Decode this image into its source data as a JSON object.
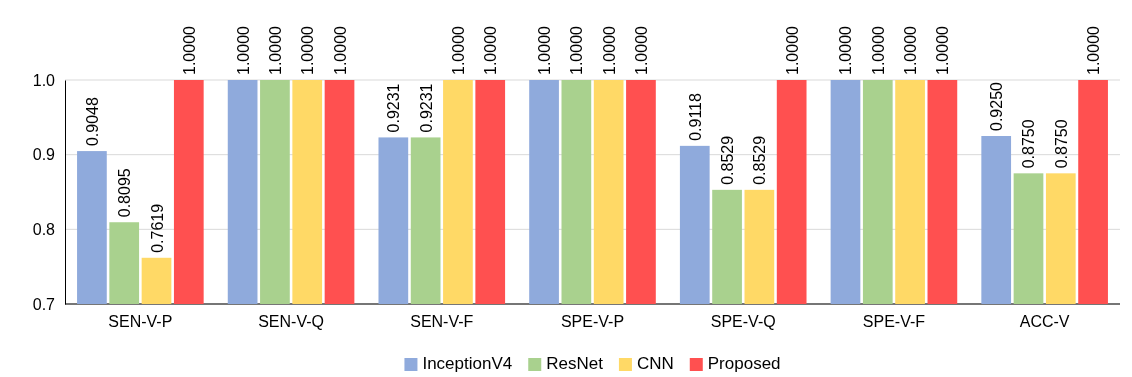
{
  "chart_data": {
    "type": "bar",
    "categories": [
      "SEN-V-P",
      "SEN-V-Q",
      "SEN-V-F",
      "SPE-V-P",
      "SPE-V-Q",
      "SPE-V-F",
      "ACC-V"
    ],
    "series": [
      {
        "name": "InceptionV4",
        "color": "#8faadc",
        "values": [
          0.9048,
          1,
          0.9231,
          1,
          0.9118,
          1,
          0.925
        ],
        "value_labels": [
          "0.9048",
          "1.0000",
          "0.9231",
          "1.0000",
          "0.9118",
          "1.0000",
          "0.9250"
        ]
      },
      {
        "name": "ResNet",
        "color": "#a9d18e",
        "values": [
          0.8095,
          1,
          0.9231,
          1,
          0.8529,
          1,
          0.875
        ],
        "value_labels": [
          "0.8095",
          "1.0000",
          "0.9231",
          "1.0000",
          "0.8529",
          "1.0000",
          "0.8750"
        ]
      },
      {
        "name": "CNN",
        "color": "#ffd966",
        "values": [
          0.7619,
          1,
          1,
          1,
          0.8529,
          1,
          0.875
        ],
        "value_labels": [
          "0.7619",
          "1.0000",
          "1.0000",
          "1.0000",
          "0.8529",
          "1.0000",
          "0.8750"
        ]
      },
      {
        "name": "Proposed",
        "color": "#ff5050",
        "values": [
          1,
          1,
          1,
          1,
          1,
          1,
          1
        ],
        "value_labels": [
          "1.0000",
          "1.0000",
          "1.0000",
          "1.0000",
          "1.0000",
          "1.0000",
          "1.0000"
        ]
      }
    ],
    "ylim": [
      0.7,
      1.0
    ],
    "yticks": [
      {
        "value": 0.7,
        "label": "0.7"
      },
      {
        "value": 0.8,
        "label": "0.8"
      },
      {
        "value": 0.9,
        "label": "0.9"
      },
      {
        "value": 1.0,
        "label": "1.0"
      }
    ],
    "grid": "y",
    "legend": "bottom"
  }
}
